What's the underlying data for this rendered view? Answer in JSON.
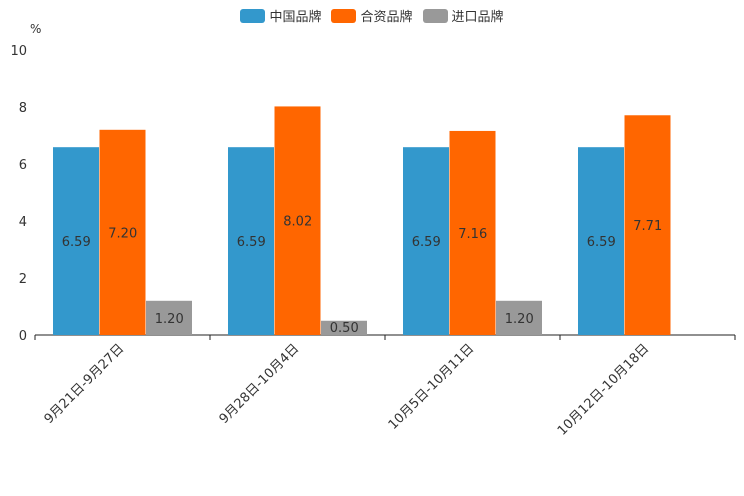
{
  "chart_data": {
    "type": "bar",
    "ylabel": "%",
    "ylim": [
      0,
      10
    ],
    "yticks": [
      "0",
      "2",
      "4",
      "6",
      "8",
      "10"
    ],
    "categories": [
      "9月21日-9月27日",
      "9月28日-10月4日",
      "10月5日-10月11日",
      "10月12日-10月18日"
    ],
    "series": [
      {
        "name": "中国品牌",
        "color": "#3398cc",
        "values": [
          6.59,
          6.59,
          6.59,
          6.59
        ],
        "labels": [
          "6.59",
          "6.59",
          "6.59",
          "6.59"
        ]
      },
      {
        "name": "合资品牌",
        "color": "#ff6600",
        "values": [
          7.2,
          8.02,
          7.16,
          7.71
        ],
        "labels": [
          "7.20",
          "8.02",
          "7.16",
          "7.71"
        ]
      },
      {
        "name": "进口品牌",
        "color": "#999999",
        "values": [
          1.2,
          0.5,
          1.2,
          null
        ],
        "labels": [
          "1.20",
          "0.50",
          "1.20",
          ""
        ]
      }
    ]
  }
}
